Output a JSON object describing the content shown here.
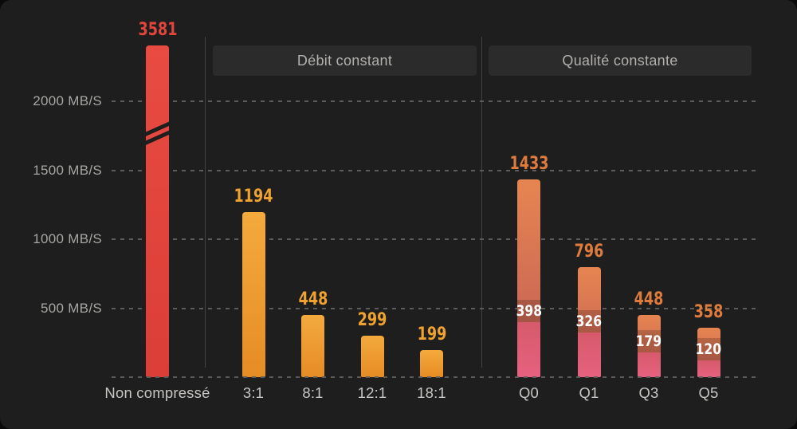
{
  "chart_data": {
    "type": "bar",
    "title": "",
    "unit": "MB/S",
    "grid": "dashed horizontal",
    "y_axis": {
      "tick_values": [
        2000,
        1500,
        1000,
        500
      ],
      "tick_labels": [
        "2000 MB/S",
        "1500 MB/S",
        "1000 MB/S",
        "500 MB/S"
      ],
      "baseline_value": 0,
      "has_axis_break": true
    },
    "sections": [
      {
        "id": "uncompressed",
        "label": ""
      },
      {
        "id": "constant-bitrate",
        "label": "Débit constant"
      },
      {
        "id": "constant-quality",
        "label": "Qualité constante"
      }
    ],
    "bars": [
      {
        "section": 0,
        "category": "Non compressé",
        "value": 3581,
        "label": "3581",
        "palette": "red",
        "axis_break": true
      },
      {
        "section": 1,
        "category": "3:1",
        "value": 1194,
        "label": "1194",
        "palette": "amber"
      },
      {
        "section": 1,
        "category": "8:1",
        "value": 448,
        "label": "448",
        "palette": "amber"
      },
      {
        "section": 1,
        "category": "12:1",
        "value": 299,
        "label": "299",
        "palette": "amber"
      },
      {
        "section": 1,
        "category": "18:1",
        "value": 199,
        "label": "199",
        "palette": "amber"
      },
      {
        "section": 2,
        "category": "Q0",
        "value": 1433,
        "label": "1433",
        "inner_value": 398,
        "inner_label": "398",
        "palette": "sunset"
      },
      {
        "section": 2,
        "category": "Q1",
        "value": 796,
        "label": "796",
        "inner_value": 326,
        "inner_label": "326",
        "palette": "sunset"
      },
      {
        "section": 2,
        "category": "Q3",
        "value": 448,
        "label": "448",
        "inner_value": 179,
        "inner_label": "179",
        "palette": "sunset"
      },
      {
        "section": 2,
        "category": "Q5",
        "value": 358,
        "label": "358",
        "inner_value": 120,
        "inner_label": "120",
        "palette": "sunset"
      }
    ],
    "colors": {
      "background": "#1E1E1E",
      "grid": "#5C5C5C",
      "separator": "#434343",
      "section_box_bg": "#2B2B2B",
      "section_box_text": "#B3B1AE",
      "axis_text": "#A8A6A3",
      "category_text": "#C8C6C3",
      "inner_label_text": "#FFFFFF",
      "palettes": {
        "red": {
          "top": "#E84B41",
          "bottom": "#DB3E37",
          "label": "#E2453C"
        },
        "amber": {
          "top": "#F4AA3C",
          "bottom": "#E68C24",
          "label": "#EFA22F"
        },
        "sunset": {
          "top": "#E78551",
          "mid": "#BF5B57",
          "lower_top": "#D75A6B",
          "lower_bottom": "#E6617F",
          "label": "#DE7B3D"
        }
      }
    }
  }
}
